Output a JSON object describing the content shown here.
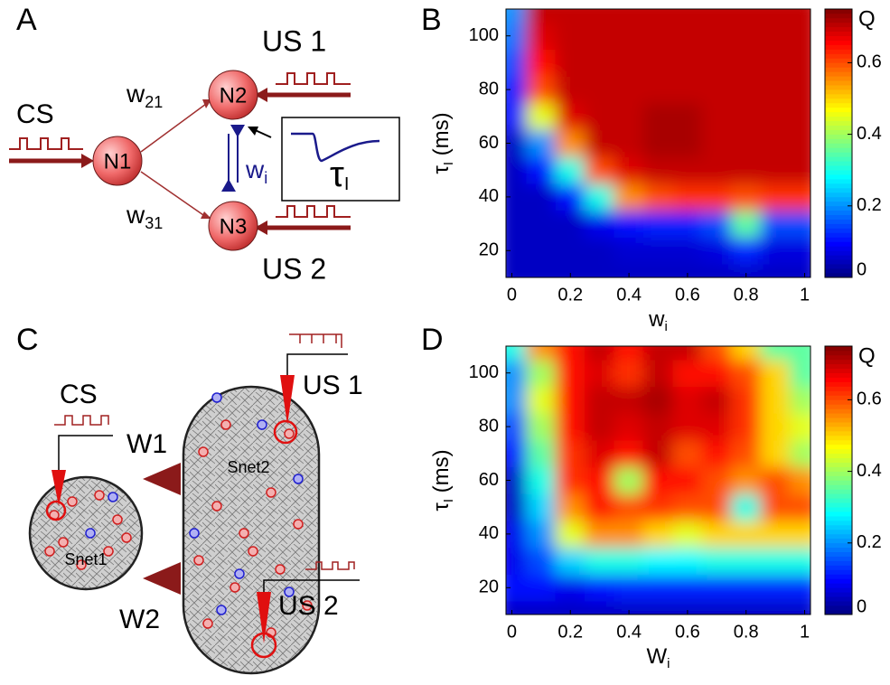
{
  "panel_labels": [
    "A",
    "B",
    "C",
    "D"
  ],
  "diagram_a": {
    "cs": "CS",
    "us1": "US 1",
    "us2": "US 2",
    "nodes": [
      "N1",
      "N2",
      "N3"
    ],
    "w21": {
      "base": "w",
      "sub": "21"
    },
    "w31": {
      "base": "w",
      "sub": "31"
    },
    "wi": {
      "base": "w",
      "sub": "i"
    },
    "tau": {
      "base": "τ",
      "sub": "I"
    }
  },
  "diagram_c": {
    "cs": "CS",
    "us1": "US 1",
    "us2": "US 2",
    "w1": "W1",
    "w2": "W2",
    "snet1": "Snet1",
    "snet2": "Snet2"
  },
  "chart_data": [
    {
      "type": "heatmap",
      "colormap": "jet",
      "x": [
        0,
        0.1,
        0.2,
        0.3,
        0.4,
        0.5,
        0.6,
        0.7,
        0.8,
        0.9,
        1
      ],
      "y": [
        10,
        20,
        30,
        40,
        50,
        60,
        70,
        80,
        90,
        100,
        110
      ],
      "values": [
        [
          0.05,
          0.05,
          0.05,
          0.05,
          0.05,
          0.05,
          0.05,
          0.05,
          0.05,
          0.05,
          0.05
        ],
        [
          0.05,
          0.05,
          0.05,
          0.05,
          0.06,
          0.06,
          0.06,
          0.07,
          0.12,
          0.07,
          0.07
        ],
        [
          0.05,
          0.05,
          0.05,
          0.08,
          0.1,
          0.12,
          0.12,
          0.15,
          0.35,
          0.15,
          0.15
        ],
        [
          0.05,
          0.05,
          0.1,
          0.3,
          0.55,
          0.6,
          0.62,
          0.62,
          0.6,
          0.62,
          0.62
        ],
        [
          0.05,
          0.1,
          0.3,
          0.6,
          0.68,
          0.7,
          0.7,
          0.7,
          0.7,
          0.7,
          0.7
        ],
        [
          0.05,
          0.2,
          0.55,
          0.7,
          0.7,
          0.72,
          0.72,
          0.7,
          0.7,
          0.7,
          0.7
        ],
        [
          0.1,
          0.45,
          0.68,
          0.7,
          0.7,
          0.72,
          0.72,
          0.7,
          0.7,
          0.7,
          0.7
        ],
        [
          0.12,
          0.6,
          0.7,
          0.7,
          0.7,
          0.7,
          0.7,
          0.7,
          0.7,
          0.7,
          0.7
        ],
        [
          0.15,
          0.65,
          0.7,
          0.7,
          0.7,
          0.7,
          0.7,
          0.7,
          0.7,
          0.7,
          0.7
        ],
        [
          0.18,
          0.68,
          0.7,
          0.7,
          0.7,
          0.7,
          0.7,
          0.7,
          0.7,
          0.7,
          0.7
        ],
        [
          0.2,
          0.7,
          0.7,
          0.7,
          0.7,
          0.7,
          0.7,
          0.7,
          0.7,
          0.7,
          0.7
        ]
      ],
      "xlim": [
        -0.02,
        1.02
      ],
      "ylim": [
        10,
        110
      ],
      "xticks": [
        0,
        0.2,
        0.4,
        0.6,
        0.8,
        1
      ],
      "yticks": [
        20,
        40,
        60,
        80,
        100
      ],
      "xlabel": {
        "base": "w",
        "sub": "i"
      },
      "ylabel": {
        "base": "τ",
        "sub": "I",
        "suffix": " (ms)"
      },
      "colorbar": {
        "label": "Q",
        "zlim": [
          0,
          0.75
        ],
        "ticks": [
          0,
          0.2,
          0.4,
          0.6
        ]
      }
    },
    {
      "type": "heatmap",
      "colormap": "jet",
      "x": [
        0,
        0.1,
        0.2,
        0.3,
        0.4,
        0.5,
        0.6,
        0.7,
        0.8,
        0.9,
        1
      ],
      "y": [
        10,
        20,
        30,
        40,
        50,
        60,
        70,
        80,
        90,
        100,
        110
      ],
      "values": [
        [
          0.05,
          0.05,
          0.05,
          0.05,
          0.05,
          0.05,
          0.05,
          0.05,
          0.05,
          0.05,
          0.05
        ],
        [
          0.1,
          0.1,
          0.08,
          0.1,
          0.12,
          0.12,
          0.12,
          0.12,
          0.12,
          0.12,
          0.12
        ],
        [
          0.08,
          0.15,
          0.25,
          0.3,
          0.3,
          0.28,
          0.28,
          0.3,
          0.3,
          0.3,
          0.3
        ],
        [
          0.08,
          0.2,
          0.45,
          0.55,
          0.55,
          0.5,
          0.45,
          0.5,
          0.5,
          0.5,
          0.5
        ],
        [
          0.05,
          0.25,
          0.55,
          0.65,
          0.6,
          0.62,
          0.6,
          0.6,
          0.3,
          0.6,
          0.6
        ],
        [
          0.05,
          0.3,
          0.62,
          0.65,
          0.4,
          0.65,
          0.65,
          0.6,
          0.55,
          0.6,
          0.55
        ],
        [
          0.1,
          0.35,
          0.62,
          0.68,
          0.65,
          0.7,
          0.6,
          0.65,
          0.6,
          0.5,
          0.4
        ],
        [
          0.15,
          0.4,
          0.65,
          0.7,
          0.68,
          0.7,
          0.68,
          0.68,
          0.62,
          0.5,
          0.45
        ],
        [
          0.2,
          0.45,
          0.65,
          0.7,
          0.7,
          0.72,
          0.68,
          0.7,
          0.62,
          0.5,
          0.4
        ],
        [
          0.2,
          0.4,
          0.65,
          0.68,
          0.62,
          0.7,
          0.65,
          0.65,
          0.6,
          0.5,
          0.35
        ],
        [
          0.3,
          0.55,
          0.65,
          0.7,
          0.65,
          0.7,
          0.7,
          0.6,
          0.5,
          0.35,
          0.35
        ]
      ],
      "xlim": [
        -0.02,
        1.02
      ],
      "ylim": [
        10,
        110
      ],
      "xticks": [
        0,
        0.2,
        0.4,
        0.6,
        0.8,
        1
      ],
      "yticks": [
        20,
        40,
        60,
        80,
        100
      ],
      "xlabel": {
        "base": "W",
        "sub": "i"
      },
      "ylabel": {
        "base": "τ",
        "sub": "I",
        "suffix": " (ms)"
      },
      "colorbar": {
        "label": "Q",
        "zlim": [
          0,
          0.75
        ],
        "ticks": [
          0,
          0.2,
          0.4,
          0.6
        ]
      }
    }
  ]
}
